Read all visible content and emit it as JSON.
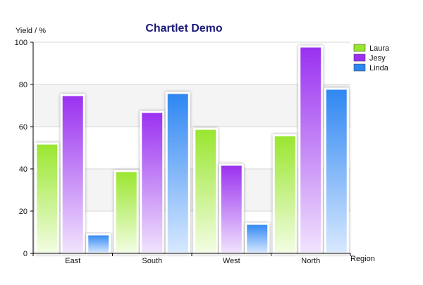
{
  "chart_data": {
    "type": "bar",
    "title": "Chartlet Demo",
    "xlabel": "Region",
    "ylabel": "Yield / %",
    "categories": [
      "East",
      "South",
      "West",
      "North"
    ],
    "series": [
      {
        "name": "Laura",
        "values": [
          52,
          39,
          59,
          56
        ]
      },
      {
        "name": "Jesy",
        "values": [
          75,
          67,
          42,
          98
        ]
      },
      {
        "name": "Linda",
        "values": [
          9,
          76,
          14,
          78
        ]
      }
    ],
    "ylim": [
      0,
      100
    ],
    "yticks": [
      "0",
      "20",
      "40",
      "60",
      "80",
      "100"
    ],
    "grid": true,
    "banded_background": true,
    "legend": "top-right",
    "colors": {
      "title": "#1a1a7a",
      "Laura": {
        "top": "#99e62e",
        "bottom": "#f3fde4"
      },
      "Jesy": {
        "top": "#9a30f0",
        "bottom": "#f1e4fd"
      },
      "Linda": {
        "top": "#2e86f2",
        "bottom": "#d8e9ff"
      },
      "band": "#f4f4f4",
      "gridline": "#d9d9d9",
      "axis": "#000000"
    }
  }
}
